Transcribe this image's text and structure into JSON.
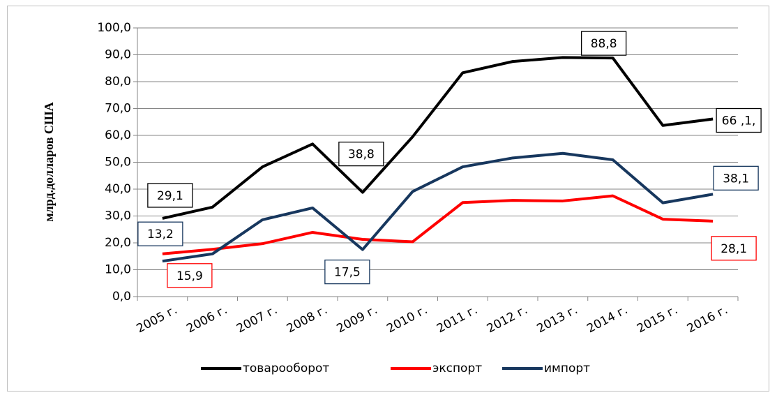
{
  "chart_data": {
    "type": "line",
    "y_axis_label": "млрд.долларов США",
    "categories": [
      "2005 г.",
      "2006 г.",
      "2007 г.",
      "2008 г.",
      "2009 г.",
      "2010 г.",
      "2011 г.",
      "2012 г.",
      "2013 г.",
      "2014 г.",
      "2015 г.",
      "2016 г."
    ],
    "series": [
      {
        "name": "товарооборот",
        "color": "#000000",
        "values": [
          29.1,
          33.3,
          48.3,
          56.8,
          38.8,
          59.5,
          83.3,
          87.5,
          89.0,
          88.8,
          63.7,
          66.1
        ],
        "value_labels": [
          "29,1",
          null,
          null,
          null,
          "38,8",
          null,
          null,
          null,
          null,
          "88,8",
          null,
          "66 ,1,"
        ]
      },
      {
        "name": "экспорт",
        "color": "#ff0000",
        "values": [
          15.9,
          17.6,
          19.7,
          23.9,
          21.3,
          20.4,
          35.0,
          35.8,
          35.6,
          37.5,
          28.8,
          28.1
        ],
        "value_labels": [
          "15,9",
          null,
          null,
          null,
          null,
          null,
          null,
          null,
          null,
          null,
          null,
          "28,1"
        ]
      },
      {
        "name": "импорт",
        "color": "#17375e",
        "values": [
          13.2,
          15.9,
          28.6,
          33.0,
          17.5,
          39.1,
          48.3,
          51.6,
          53.3,
          50.9,
          34.9,
          38.1
        ],
        "value_labels": [
          "13,2",
          null,
          null,
          null,
          "17,5",
          null,
          null,
          null,
          null,
          null,
          null,
          "38,1"
        ]
      }
    ],
    "ylim": [
      0,
      100
    ],
    "yticks": [
      {
        "value": 0,
        "label": "0,0"
      },
      {
        "value": 10,
        "label": "10,0"
      },
      {
        "value": 20,
        "label": "20,0"
      },
      {
        "value": 30,
        "label": "30,0"
      },
      {
        "value": 40,
        "label": "40,0"
      },
      {
        "value": 50,
        "label": "50,0"
      },
      {
        "value": 60,
        "label": "60,0"
      },
      {
        "value": 70,
        "label": "70,0"
      },
      {
        "value": 80,
        "label": "80,0"
      },
      {
        "value": 90,
        "label": "90,0"
      },
      {
        "value": 100,
        "label": "100,0"
      }
    ],
    "grid": true,
    "legend": "bottom"
  }
}
